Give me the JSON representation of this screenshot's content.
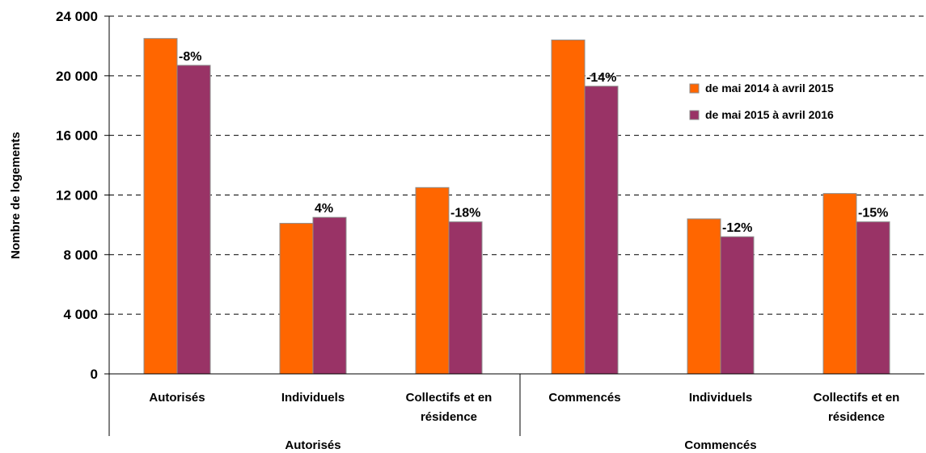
{
  "chart_data": {
    "type": "bar",
    "ylabel": "Nombre de logements",
    "ylim": [
      0,
      24000
    ],
    "yticks": [
      0,
      4000,
      8000,
      12000,
      16000,
      20000,
      24000
    ],
    "ytick_labels": [
      "0",
      "4 000",
      "8 000",
      "12 000",
      "16 000",
      "20 000",
      "24 000"
    ],
    "grid": "horizontal dashed",
    "legend_position": "top-right",
    "categories": [
      "Autorisés",
      "Individuels",
      "Collectifs et en résidence",
      "Commencés",
      "Individuels",
      "Collectifs et en résidence"
    ],
    "category_lines": [
      [
        "Autorisés"
      ],
      [
        "Individuels"
      ],
      [
        "Collectifs et en",
        "résidence"
      ],
      [
        "Commencés"
      ],
      [
        "Individuels"
      ],
      [
        "Collectifs et en",
        "résidence"
      ]
    ],
    "groups": [
      {
        "label": "Autorisés",
        "span": [
          0,
          2
        ]
      },
      {
        "label": "Commencés",
        "span": [
          3,
          5
        ]
      }
    ],
    "series": [
      {
        "name": "de mai 2014 à avril 2015",
        "color": "#FF6600",
        "values": [
          22500,
          10100,
          12500,
          22400,
          10400,
          12100
        ]
      },
      {
        "name": "de mai 2015 à avril 2016",
        "color": "#993366",
        "values": [
          20700,
          10500,
          10200,
          19300,
          9200,
          10200
        ]
      }
    ],
    "data_labels": [
      "-8%",
      "4%",
      "-18%",
      "-14%",
      "-12%",
      "-15%"
    ]
  }
}
